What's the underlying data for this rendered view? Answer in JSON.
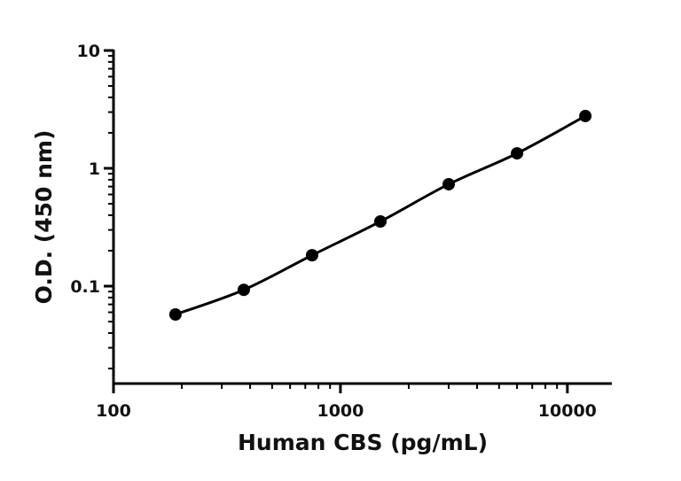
{
  "chart_data": {
    "type": "scatter",
    "xlabel": "Human CBS (pg/mL)",
    "ylabel": "O.D. (450 nm)",
    "x": [
      187.5,
      375,
      750,
      1500,
      3000,
      6000,
      12000
    ],
    "values": [
      0.0575,
      0.093,
      0.183,
      0.354,
      0.733,
      1.34,
      2.78
    ],
    "color": "#000000",
    "xscale": "log",
    "yscale": "log",
    "minor_ticks": true,
    "fit_line": true,
    "xlim": [
      100,
      15700
    ],
    "xticks": [
      100,
      1000,
      10000
    ],
    "ylim": [
      0.0149,
      10
    ],
    "yticks": [
      0.1,
      1,
      10
    ]
  }
}
